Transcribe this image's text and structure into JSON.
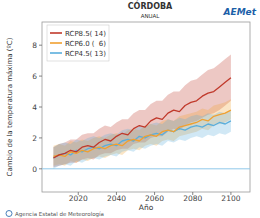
{
  "chart_data": {
    "type": "line",
    "title": "CÓRDOBA",
    "subtitle": "ANUAL",
    "x_label": "Año",
    "y_label": "Cambio de la temperatura máxima (ºC)",
    "source": "Agencia Estatal de Meteorología",
    "logo": "AEMet",
    "legend": "upper left",
    "grid": false,
    "xlim": [
      2001,
      2110
    ],
    "ylim": [
      -1.5,
      9.5
    ],
    "xticks": [
      2020,
      2040,
      2060,
      2080,
      2100
    ],
    "yticks": [
      0,
      2,
      4,
      6,
      8
    ],
    "reference_value": 0,
    "x": [
      2007,
      2010,
      2013,
      2016,
      2019,
      2022,
      2025,
      2028,
      2031,
      2034,
      2037,
      2040,
      2043,
      2046,
      2049,
      2052,
      2055,
      2058,
      2061,
      2064,
      2067,
      2070,
      2073,
      2076,
      2079,
      2082,
      2085,
      2088,
      2091,
      2094,
      2097,
      2100
    ],
    "series": [
      {
        "name": "RCP8.5",
        "color": "#c0392b",
        "models": {
          "value": 14,
          "label": "( 14)"
        },
        "values": [
          0.7,
          0.9,
          1.0,
          1.2,
          1.1,
          1.4,
          1.5,
          1.4,
          1.7,
          1.9,
          1.8,
          2.1,
          2.3,
          2.2,
          2.6,
          2.8,
          2.7,
          3.1,
          3.3,
          3.2,
          3.6,
          3.8,
          3.7,
          4.1,
          4.3,
          4.4,
          4.7,
          4.9,
          5.0,
          5.3,
          5.6,
          5.9
        ],
        "lower": [
          0.1,
          0.2,
          0.3,
          0.4,
          0.4,
          0.6,
          0.7,
          0.6,
          0.9,
          1.0,
          1.0,
          1.2,
          1.3,
          1.3,
          1.6,
          1.7,
          1.7,
          2.0,
          2.1,
          2.1,
          2.4,
          2.6,
          2.5,
          2.8,
          3.0,
          3.1,
          3.3,
          3.5,
          3.6,
          3.8,
          4.1,
          4.4
        ],
        "upper": [
          1.4,
          1.6,
          1.7,
          1.9,
          1.9,
          2.2,
          2.3,
          2.3,
          2.6,
          2.8,
          2.7,
          3.0,
          3.2,
          3.2,
          3.6,
          3.8,
          3.8,
          4.2,
          4.4,
          4.4,
          4.8,
          5.0,
          5.0,
          5.4,
          5.7,
          5.8,
          6.1,
          6.4,
          6.5,
          6.8,
          7.1,
          7.4
        ]
      },
      {
        "name": "RCP6.0",
        "color": "#f0a030",
        "models": {
          "value": 6,
          "label": "(  6)"
        },
        "values": [
          0.8,
          0.9,
          0.8,
          1.1,
          1.0,
          1.2,
          1.1,
          1.3,
          1.4,
          1.3,
          1.5,
          1.6,
          1.5,
          1.8,
          1.9,
          1.8,
          2.1,
          2.2,
          2.1,
          2.4,
          2.5,
          2.4,
          2.7,
          2.8,
          2.9,
          3.0,
          3.2,
          3.1,
          3.4,
          3.5,
          3.6,
          3.8
        ],
        "lower": [
          0.2,
          0.3,
          0.2,
          0.5,
          0.4,
          0.6,
          0.5,
          0.7,
          0.8,
          0.7,
          0.9,
          1.0,
          0.9,
          1.2,
          1.3,
          1.2,
          1.5,
          1.6,
          1.5,
          1.8,
          1.9,
          1.8,
          2.1,
          2.2,
          2.3,
          2.4,
          2.6,
          2.5,
          2.8,
          2.9,
          3.0,
          3.2
        ],
        "upper": [
          1.5,
          1.6,
          1.5,
          1.8,
          1.7,
          1.9,
          1.8,
          2.0,
          2.1,
          2.0,
          2.2,
          2.3,
          2.2,
          2.5,
          2.6,
          2.5,
          2.8,
          2.9,
          2.8,
          3.1,
          3.2,
          3.1,
          3.4,
          3.5,
          3.6,
          3.7,
          3.9,
          3.8,
          4.1,
          4.2,
          4.3,
          4.5
        ]
      },
      {
        "name": "RCP4.5",
        "color": "#5aaedc",
        "models": {
          "value": 13,
          "label": "( 13)"
        },
        "values": [
          0.7,
          0.9,
          1.0,
          0.9,
          1.2,
          1.1,
          1.3,
          1.4,
          1.3,
          1.5,
          1.6,
          1.5,
          1.8,
          1.9,
          1.8,
          2.1,
          2.0,
          2.2,
          2.3,
          2.2,
          2.5,
          2.4,
          2.6,
          2.5,
          2.7,
          2.8,
          2.7,
          2.9,
          2.8,
          3.0,
          2.9,
          3.1
        ],
        "lower": [
          0.0,
          0.2,
          0.3,
          0.2,
          0.5,
          0.4,
          0.6,
          0.7,
          0.6,
          0.8,
          0.9,
          0.8,
          1.1,
          1.2,
          1.1,
          1.4,
          1.3,
          1.5,
          1.6,
          1.5,
          1.8,
          1.7,
          1.9,
          1.8,
          2.0,
          2.1,
          2.0,
          2.2,
          2.1,
          2.3,
          2.2,
          2.4
        ],
        "upper": [
          1.4,
          1.6,
          1.7,
          1.6,
          1.9,
          1.8,
          2.0,
          2.1,
          2.0,
          2.2,
          2.3,
          2.2,
          2.5,
          2.6,
          2.5,
          2.8,
          2.7,
          2.9,
          3.0,
          2.9,
          3.2,
          3.1,
          3.3,
          3.2,
          3.4,
          3.5,
          3.4,
          3.6,
          3.5,
          3.7,
          3.6,
          3.8
        ]
      }
    ]
  }
}
